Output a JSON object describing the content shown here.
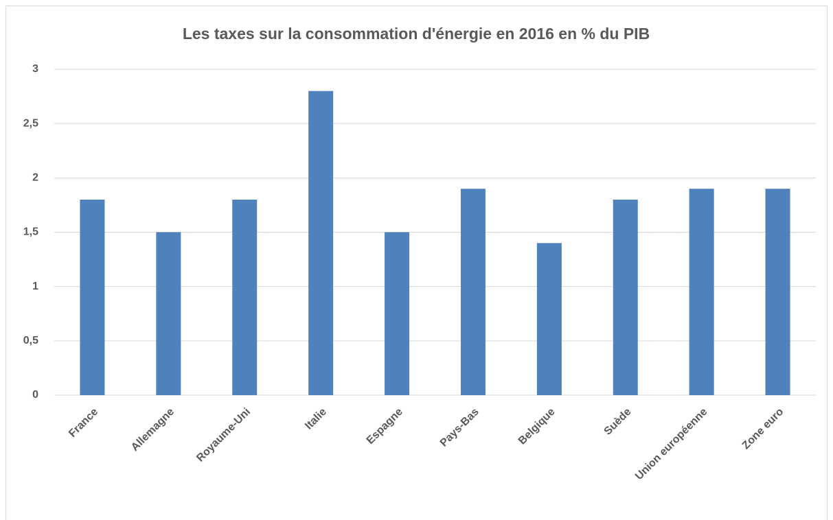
{
  "chart_data": {
    "type": "bar",
    "title": "Les taxes sur la consommation d'énergie en 2016 en % du PIB",
    "categories": [
      "France",
      "Allemagne",
      "Royaume-Uni",
      "Italie",
      "Espagne",
      "Pays-Bas",
      "Belgique",
      "Suède",
      "Union européenne",
      "Zone euro"
    ],
    "values": [
      1.8,
      1.5,
      1.8,
      2.8,
      1.5,
      1.9,
      1.4,
      1.8,
      1.9,
      1.9
    ],
    "color": "#4f81bd",
    "ylim": [
      0,
      3
    ],
    "yticks": [
      0,
      {
        "value": 0.5,
        "label": "0,5"
      },
      1,
      {
        "value": 1.5,
        "label": "1,5"
      },
      2,
      {
        "value": 2.5,
        "label": "2,5"
      },
      3
    ],
    "grid": true
  }
}
